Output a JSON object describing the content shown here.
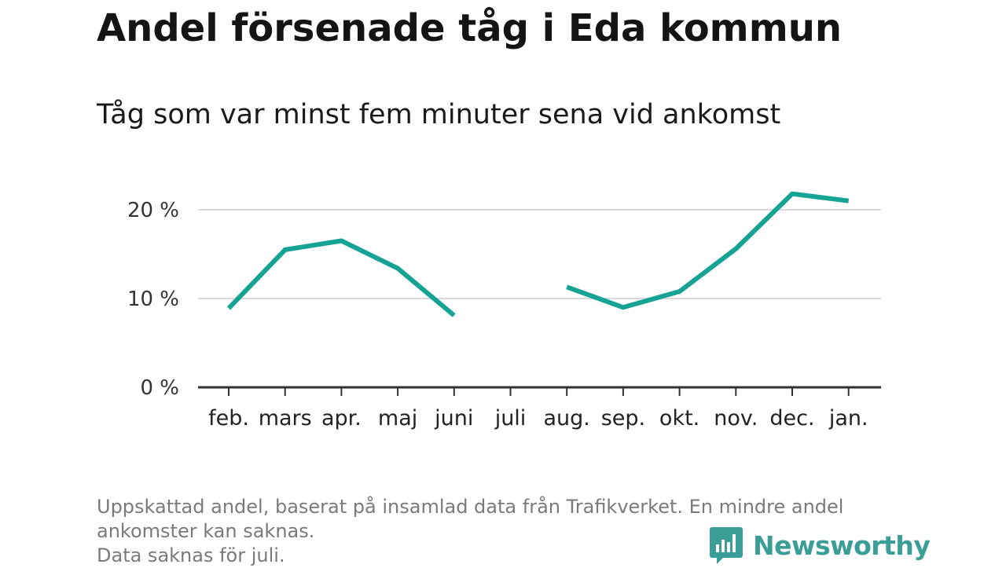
{
  "title": "Andel försenade tåg i Eda kommun",
  "subtitle": "Tåg som var minst fem minuter sena vid ankomst",
  "footnote": {
    "line1": "Uppskattad andel, baserat på insamlad data från Trafikverket. En mindre andel",
    "line2": "ankomster kan saknas.",
    "line3": "Data saknas för juli."
  },
  "logo": {
    "text": "Newsworthy",
    "icon": "newsworthy-bar-chart-icon"
  },
  "colors": {
    "line": "#16a394",
    "grid": "#d9d9d9",
    "axis": "#333333",
    "brand": "#3a9e97"
  },
  "chart_data": {
    "type": "line",
    "title": "Andel försenade tåg i Eda kommun",
    "subtitle": "Tåg som var minst fem minuter sena vid ankomst",
    "categories": [
      "feb.",
      "mars",
      "apr.",
      "maj",
      "juni",
      "juli",
      "aug.",
      "sep.",
      "okt.",
      "nov.",
      "dec.",
      "jan."
    ],
    "series": [
      {
        "values": [
          8.9,
          15.5,
          16.5,
          13.4,
          8.1,
          null,
          11.3,
          9.0,
          10.8,
          15.6,
          21.8,
          21.0
        ]
      }
    ],
    "yticks": [
      0,
      10,
      20
    ],
    "ytick_labels": [
      "0 %",
      "10 %",
      "20 %"
    ],
    "ylim": [
      0,
      25
    ],
    "xlabel": "",
    "ylabel": "",
    "grid": true,
    "legend": "none"
  }
}
